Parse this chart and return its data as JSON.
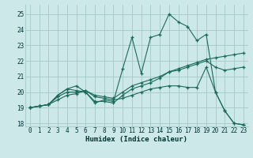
{
  "xlabel": "Humidex (Indice chaleur)",
  "background_color": "#cce8e8",
  "grid_color": "#aacccc",
  "line_color": "#1a6b5a",
  "xlim": [
    -0.5,
    23.5
  ],
  "ylim": [
    17.8,
    25.6
  ],
  "yticks": [
    18,
    19,
    20,
    21,
    22,
    23,
    24,
    25
  ],
  "xticks": [
    0,
    1,
    2,
    3,
    4,
    5,
    6,
    7,
    8,
    9,
    10,
    11,
    12,
    13,
    14,
    15,
    16,
    17,
    18,
    19,
    20,
    21,
    22,
    23
  ],
  "line1_x": [
    0,
    1,
    2,
    3,
    4,
    5,
    6,
    7,
    8,
    9,
    10,
    11,
    12,
    13,
    14,
    15,
    16,
    17,
    18,
    19,
    20,
    21,
    22,
    23
  ],
  "line1_y": [
    19.0,
    19.1,
    19.2,
    19.8,
    20.2,
    20.1,
    20.0,
    19.4,
    19.4,
    19.3,
    19.8,
    20.2,
    20.4,
    20.6,
    20.9,
    21.3,
    21.5,
    21.7,
    21.9,
    22.1,
    22.2,
    22.3,
    22.4,
    22.5
  ],
  "line2_x": [
    0,
    1,
    2,
    3,
    4,
    5,
    6,
    7,
    8,
    9,
    10,
    11,
    12,
    13,
    14,
    15,
    16,
    17,
    18,
    19,
    20,
    21,
    22,
    23
  ],
  "line2_y": [
    19.0,
    19.1,
    19.2,
    19.7,
    20.0,
    20.0,
    20.1,
    19.8,
    19.7,
    19.6,
    20.0,
    20.4,
    20.6,
    20.8,
    21.0,
    21.3,
    21.4,
    21.6,
    21.8,
    22.0,
    21.6,
    21.4,
    21.5,
    21.6
  ],
  "line3_x": [
    0,
    1,
    2,
    3,
    4,
    5,
    6,
    7,
    8,
    9,
    10,
    11,
    12,
    13,
    14,
    15,
    16,
    17,
    18,
    19,
    20,
    21,
    22,
    23
  ],
  "line3_y": [
    19.0,
    19.1,
    19.2,
    19.8,
    20.2,
    20.4,
    20.0,
    19.3,
    19.5,
    19.4,
    21.5,
    23.5,
    21.2,
    23.5,
    23.7,
    25.0,
    24.5,
    24.2,
    23.3,
    23.7,
    20.0,
    18.8,
    18.0,
    17.9
  ],
  "line4_x": [
    0,
    1,
    2,
    3,
    4,
    5,
    6,
    7,
    8,
    9,
    10,
    11,
    12,
    13,
    14,
    15,
    16,
    17,
    18,
    19,
    20,
    21,
    22,
    23
  ],
  "line4_y": [
    19.0,
    19.1,
    19.2,
    19.5,
    19.8,
    19.9,
    20.1,
    19.7,
    19.6,
    19.5,
    19.6,
    19.8,
    20.0,
    20.2,
    20.3,
    20.4,
    20.4,
    20.3,
    20.3,
    21.6,
    20.0,
    18.8,
    18.0,
    17.9
  ]
}
